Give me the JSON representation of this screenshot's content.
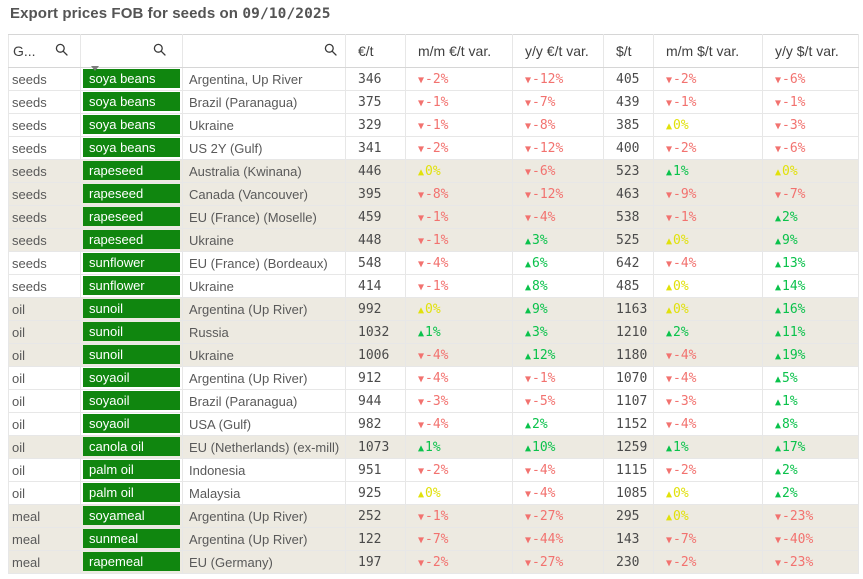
{
  "header": {
    "title_prefix": "Export prices FOB for seeds on ",
    "title_date": "09/10/2025"
  },
  "colors": {
    "title": "#545454",
    "header_text": "#404040",
    "body_text": "#595959",
    "number_text": "#4a4a4a",
    "chip_bg": "#10860f",
    "chip_text": "#ffffff",
    "shaded_row_bg": "#edeae1",
    "variance_down": "#f2726f",
    "variance_up": "#0ac24b",
    "variance_up_zero": "#e1e10a",
    "grid": "#e7e7e7",
    "grid_dark": "#d6d6d6"
  },
  "icons": {
    "search": "magnifier",
    "sort_indicator": "down-triangle",
    "up_arrow": "▲",
    "down_arrow": "▼"
  },
  "sort_indicator": {
    "direction": "descending"
  },
  "table": {
    "columns": [
      {
        "key": "group",
        "label": "G...",
        "searchable": true
      },
      {
        "key": "product",
        "label": "",
        "searchable": true
      },
      {
        "key": "origin",
        "label": "",
        "searchable": true
      },
      {
        "key": "eur_t",
        "label": "€/t",
        "searchable": false
      },
      {
        "key": "mm_eur",
        "label": "m/m €/t var.",
        "searchable": false
      },
      {
        "key": "yy_eur",
        "label": "y/y €/t var.",
        "searchable": false
      },
      {
        "key": "usd_t",
        "label": "$/t",
        "searchable": false
      },
      {
        "key": "mm_usd",
        "label": "m/m $/t var.",
        "searchable": false
      },
      {
        "key": "yy_usd",
        "label": "y/y $/t var.",
        "searchable": false
      }
    ],
    "rows": [
      {
        "group": "seeds",
        "product": "soya beans",
        "origin": "Argentina, Up River",
        "eur_t": "346",
        "mm_eur": {
          "dir": "down",
          "val": "-2%"
        },
        "yy_eur": {
          "dir": "down",
          "val": "-12%"
        },
        "usd_t": "405",
        "mm_usd": {
          "dir": "down",
          "val": "-2%"
        },
        "yy_usd": {
          "dir": "down",
          "val": "-6%"
        },
        "shaded": false
      },
      {
        "group": "seeds",
        "product": "soya beans",
        "origin": "Brazil (Paranagua)",
        "eur_t": "375",
        "mm_eur": {
          "dir": "down",
          "val": "-1%"
        },
        "yy_eur": {
          "dir": "down",
          "val": "-7%"
        },
        "usd_t": "439",
        "mm_usd": {
          "dir": "down",
          "val": "-1%"
        },
        "yy_usd": {
          "dir": "down",
          "val": "-1%"
        },
        "shaded": false
      },
      {
        "group": "seeds",
        "product": "soya beans",
        "origin": "Ukraine",
        "eur_t": "329",
        "mm_eur": {
          "dir": "down",
          "val": "-1%"
        },
        "yy_eur": {
          "dir": "down",
          "val": "-8%"
        },
        "usd_t": "385",
        "mm_usd": {
          "dir": "up",
          "val": "0%"
        },
        "yy_usd": {
          "dir": "down",
          "val": "-3%"
        },
        "shaded": false
      },
      {
        "group": "seeds",
        "product": "soya beans",
        "origin": "US 2Y (Gulf)",
        "eur_t": "341",
        "mm_eur": {
          "dir": "down",
          "val": "-2%"
        },
        "yy_eur": {
          "dir": "down",
          "val": "-12%"
        },
        "usd_t": "400",
        "mm_usd": {
          "dir": "down",
          "val": "-2%"
        },
        "yy_usd": {
          "dir": "down",
          "val": "-6%"
        },
        "shaded": false
      },
      {
        "group": "seeds",
        "product": "rapeseed",
        "origin": "Australia (Kwinana)",
        "eur_t": "446",
        "mm_eur": {
          "dir": "up",
          "val": "0%"
        },
        "yy_eur": {
          "dir": "down",
          "val": "-6%"
        },
        "usd_t": "523",
        "mm_usd": {
          "dir": "up",
          "val": "1%"
        },
        "yy_usd": {
          "dir": "up",
          "val": "0%"
        },
        "shaded": true
      },
      {
        "group": "seeds",
        "product": "rapeseed",
        "origin": "Canada (Vancouver)",
        "eur_t": "395",
        "mm_eur": {
          "dir": "down",
          "val": "-8%"
        },
        "yy_eur": {
          "dir": "down",
          "val": "-12%"
        },
        "usd_t": "463",
        "mm_usd": {
          "dir": "down",
          "val": "-9%"
        },
        "yy_usd": {
          "dir": "down",
          "val": "-7%"
        },
        "shaded": true
      },
      {
        "group": "seeds",
        "product": "rapeseed",
        "origin": "EU (France) (Moselle)",
        "eur_t": "459",
        "mm_eur": {
          "dir": "down",
          "val": "-1%"
        },
        "yy_eur": {
          "dir": "down",
          "val": "-4%"
        },
        "usd_t": "538",
        "mm_usd": {
          "dir": "down",
          "val": "-1%"
        },
        "yy_usd": {
          "dir": "up",
          "val": "2%"
        },
        "shaded": true
      },
      {
        "group": "seeds",
        "product": "rapeseed",
        "origin": "Ukraine",
        "eur_t": "448",
        "mm_eur": {
          "dir": "down",
          "val": "-1%"
        },
        "yy_eur": {
          "dir": "up",
          "val": "3%"
        },
        "usd_t": "525",
        "mm_usd": {
          "dir": "up",
          "val": "0%"
        },
        "yy_usd": {
          "dir": "up",
          "val": "9%"
        },
        "shaded": true
      },
      {
        "group": "seeds",
        "product": "sunflower",
        "origin": "EU (France) (Bordeaux)",
        "eur_t": "548",
        "mm_eur": {
          "dir": "down",
          "val": "-4%"
        },
        "yy_eur": {
          "dir": "up",
          "val": "6%"
        },
        "usd_t": "642",
        "mm_usd": {
          "dir": "down",
          "val": "-4%"
        },
        "yy_usd": {
          "dir": "up",
          "val": "13%"
        },
        "shaded": false
      },
      {
        "group": "seeds",
        "product": "sunflower",
        "origin": "Ukraine",
        "eur_t": "414",
        "mm_eur": {
          "dir": "down",
          "val": "-1%"
        },
        "yy_eur": {
          "dir": "up",
          "val": "8%"
        },
        "usd_t": "485",
        "mm_usd": {
          "dir": "up",
          "val": "0%"
        },
        "yy_usd": {
          "dir": "up",
          "val": "14%"
        },
        "shaded": false
      },
      {
        "group": "oil",
        "product": "sunoil",
        "origin": "Argentina (Up River)",
        "eur_t": "992",
        "mm_eur": {
          "dir": "up",
          "val": "0%"
        },
        "yy_eur": {
          "dir": "up",
          "val": "9%"
        },
        "usd_t": "1163",
        "mm_usd": {
          "dir": "up",
          "val": "0%"
        },
        "yy_usd": {
          "dir": "up",
          "val": "16%"
        },
        "shaded": true
      },
      {
        "group": "oil",
        "product": "sunoil",
        "origin": "Russia",
        "eur_t": "1032",
        "mm_eur": {
          "dir": "up",
          "val": "1%"
        },
        "yy_eur": {
          "dir": "up",
          "val": "3%"
        },
        "usd_t": "1210",
        "mm_usd": {
          "dir": "up",
          "val": "2%"
        },
        "yy_usd": {
          "dir": "up",
          "val": "11%"
        },
        "shaded": true
      },
      {
        "group": "oil",
        "product": "sunoil",
        "origin": "Ukraine",
        "eur_t": "1006",
        "mm_eur": {
          "dir": "down",
          "val": "-4%"
        },
        "yy_eur": {
          "dir": "up",
          "val": "12%"
        },
        "usd_t": "1180",
        "mm_usd": {
          "dir": "down",
          "val": "-4%"
        },
        "yy_usd": {
          "dir": "up",
          "val": "19%"
        },
        "shaded": true
      },
      {
        "group": "oil",
        "product": "soyaoil",
        "origin": "Argentina (Up River)",
        "eur_t": "912",
        "mm_eur": {
          "dir": "down",
          "val": "-4%"
        },
        "yy_eur": {
          "dir": "down",
          "val": "-1%"
        },
        "usd_t": "1070",
        "mm_usd": {
          "dir": "down",
          "val": "-4%"
        },
        "yy_usd": {
          "dir": "up",
          "val": "5%"
        },
        "shaded": false
      },
      {
        "group": "oil",
        "product": "soyaoil",
        "origin": "Brazil (Paranagua)",
        "eur_t": "944",
        "mm_eur": {
          "dir": "down",
          "val": "-3%"
        },
        "yy_eur": {
          "dir": "down",
          "val": "-5%"
        },
        "usd_t": "1107",
        "mm_usd": {
          "dir": "down",
          "val": "-3%"
        },
        "yy_usd": {
          "dir": "up",
          "val": "1%"
        },
        "shaded": false
      },
      {
        "group": "oil",
        "product": "soyaoil",
        "origin": "USA (Gulf)",
        "eur_t": "982",
        "mm_eur": {
          "dir": "down",
          "val": "-4%"
        },
        "yy_eur": {
          "dir": "up",
          "val": "2%"
        },
        "usd_t": "1152",
        "mm_usd": {
          "dir": "down",
          "val": "-4%"
        },
        "yy_usd": {
          "dir": "up",
          "val": "8%"
        },
        "shaded": false
      },
      {
        "group": "oil",
        "product": "canola oil",
        "origin": "EU (Netherlands) (ex-mill)",
        "eur_t": "1073",
        "mm_eur": {
          "dir": "up",
          "val": "1%"
        },
        "yy_eur": {
          "dir": "up",
          "val": "10%"
        },
        "usd_t": "1259",
        "mm_usd": {
          "dir": "up",
          "val": "1%"
        },
        "yy_usd": {
          "dir": "up",
          "val": "17%"
        },
        "shaded": true
      },
      {
        "group": "oil",
        "product": "palm oil",
        "origin": "Indonesia",
        "eur_t": "951",
        "mm_eur": {
          "dir": "down",
          "val": "-2%"
        },
        "yy_eur": {
          "dir": "down",
          "val": "-4%"
        },
        "usd_t": "1115",
        "mm_usd": {
          "dir": "down",
          "val": "-2%"
        },
        "yy_usd": {
          "dir": "up",
          "val": "2%"
        },
        "shaded": false
      },
      {
        "group": "oil",
        "product": "palm oil",
        "origin": "Malaysia",
        "eur_t": "925",
        "mm_eur": {
          "dir": "up",
          "val": "0%"
        },
        "yy_eur": {
          "dir": "down",
          "val": "-4%"
        },
        "usd_t": "1085",
        "mm_usd": {
          "dir": "up",
          "val": "0%"
        },
        "yy_usd": {
          "dir": "up",
          "val": "2%"
        },
        "shaded": false
      },
      {
        "group": "meal",
        "product": "soyameal",
        "origin": "Argentina (Up River)",
        "eur_t": "252",
        "mm_eur": {
          "dir": "down",
          "val": "-1%"
        },
        "yy_eur": {
          "dir": "down",
          "val": "-27%"
        },
        "usd_t": "295",
        "mm_usd": {
          "dir": "up",
          "val": "0%"
        },
        "yy_usd": {
          "dir": "down",
          "val": "-23%"
        },
        "shaded": true
      },
      {
        "group": "meal",
        "product": "sunmeal",
        "origin": "Argentina (Up River)",
        "eur_t": "122",
        "mm_eur": {
          "dir": "down",
          "val": "-7%"
        },
        "yy_eur": {
          "dir": "down",
          "val": "-44%"
        },
        "usd_t": "143",
        "mm_usd": {
          "dir": "down",
          "val": "-7%"
        },
        "yy_usd": {
          "dir": "down",
          "val": "-40%"
        },
        "shaded": true
      },
      {
        "group": "meal",
        "product": "rapemeal",
        "origin": "EU (Germany)",
        "eur_t": "197",
        "mm_eur": {
          "dir": "down",
          "val": "-2%"
        },
        "yy_eur": {
          "dir": "down",
          "val": "-27%"
        },
        "usd_t": "230",
        "mm_usd": {
          "dir": "down",
          "val": "-2%"
        },
        "yy_usd": {
          "dir": "down",
          "val": "-23%"
        },
        "shaded": true
      }
    ]
  }
}
